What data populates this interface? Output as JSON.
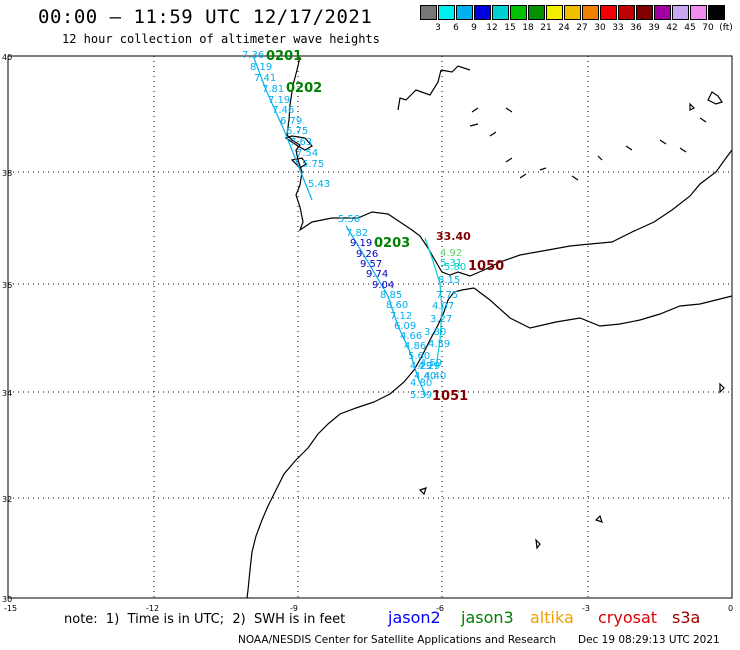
{
  "header": {
    "title": "00:00 – 11:59 UTC 12/17/2021",
    "subtitle": "12 hour collection of altimeter wave heights"
  },
  "legend": {
    "colors": [
      "#777777",
      "#00f0f0",
      "#00b0f0",
      "#0000e0",
      "#00d0d0",
      "#00c000",
      "#009000",
      "#f0f000",
      "#f0c000",
      "#f08000",
      "#f00000",
      "#c00000",
      "#800000",
      "#a000a0",
      "#c8a8f0",
      "#f08cf0",
      "#000000"
    ],
    "ticks": [
      "3",
      "6",
      "9",
      "12",
      "15",
      "18",
      "21",
      "24",
      "27",
      "30",
      "33",
      "36",
      "39",
      "42",
      "45",
      "70",
      "(ft)"
    ]
  },
  "map": {
    "lat_labels": [
      "40",
      "38",
      "36",
      "34",
      "32",
      "30"
    ],
    "lon_labels": [
      "-15",
      "-12",
      "-9",
      "-6",
      "-3",
      "0"
    ],
    "pass_labels": [
      {
        "text": "0201",
        "color": "#008000"
      },
      {
        "text": "0202",
        "color": "#008000"
      },
      {
        "text": "0203",
        "color": "#008000"
      },
      {
        "text": "33.40",
        "color": "#800000"
      },
      {
        "text": "1050",
        "color": "#800000"
      },
      {
        "text": "1051",
        "color": "#800000"
      }
    ],
    "readings": [
      {
        "v": "7.36",
        "c": "#00b0f0"
      },
      {
        "v": "8.19",
        "c": "#00b0f0"
      },
      {
        "v": "7.41",
        "c": "#00b0f0"
      },
      {
        "v": "7.81",
        "c": "#00b0f0"
      },
      {
        "v": "7.19",
        "c": "#00b0f0"
      },
      {
        "v": "7.46",
        "c": "#00b0f0"
      },
      {
        "v": "6.79",
        "c": "#00b0f0"
      },
      {
        "v": "6.75",
        "c": "#00b0f0"
      },
      {
        "v": "7.63",
        "c": "#00b0f0"
      },
      {
        "v": "7.54",
        "c": "#00b0f0"
      },
      {
        "v": "5.75",
        "c": "#00b0f0"
      },
      {
        "v": "5.43",
        "c": "#00b0f0"
      },
      {
        "v": "5.58",
        "c": "#00b0f0"
      },
      {
        "v": "7.82",
        "c": "#00b0f0"
      },
      {
        "v": "9.19",
        "c": "#0000c0"
      },
      {
        "v": "9.26",
        "c": "#0000c0"
      },
      {
        "v": "9.57",
        "c": "#0000c0"
      },
      {
        "v": "9.74",
        "c": "#0000c0"
      },
      {
        "v": "9.04",
        "c": "#0000c0"
      },
      {
        "v": "8.85",
        "c": "#00b0f0"
      },
      {
        "v": "8.60",
        "c": "#00b0f0"
      },
      {
        "v": "7.12",
        "c": "#00b0f0"
      },
      {
        "v": "6.09",
        "c": "#00b0f0"
      },
      {
        "v": "4.66",
        "c": "#00b0f0"
      },
      {
        "v": "4.86",
        "c": "#00b0f0"
      },
      {
        "v": "5.60",
        "c": "#00b0f0"
      },
      {
        "v": "4.29",
        "c": "#00b0f0"
      },
      {
        "v": "4.40",
        "c": "#00b0f0"
      },
      {
        "v": "4.80",
        "c": "#00b0f0"
      },
      {
        "v": "5.39",
        "c": "#00b0f0"
      },
      {
        "v": "4.92",
        "c": "#60d060"
      },
      {
        "v": "5.31",
        "c": "#00d0d0"
      },
      {
        "v": "5.80",
        "c": "#00d0d0"
      },
      {
        "v": "8.15",
        "c": "#00b0f0"
      },
      {
        "v": "7.75",
        "c": "#00b0f0"
      },
      {
        "v": "4.07",
        "c": "#00b0f0"
      },
      {
        "v": "3.27",
        "c": "#00b0f0"
      },
      {
        "v": "3.80",
        "c": "#00b0f0"
      },
      {
        "v": "4.59",
        "c": "#00b0f0"
      },
      {
        "v": "4.59",
        "c": "#00b0f0"
      },
      {
        "v": "4.29",
        "c": "#00b0f0"
      },
      {
        "v": "4.40",
        "c": "#00b0f0"
      }
    ]
  },
  "footer": {
    "note": "note:  1)  Time is in UTC;  2)  SWH is in feet",
    "satellites": [
      {
        "name": "jason2",
        "color": "#0000ff"
      },
      {
        "name": "jason3",
        "color": "#008000"
      },
      {
        "name": "altika",
        "color": "#f0a000"
      },
      {
        "name": "cryosat",
        "color": "#e00000"
      },
      {
        "name": "s3a",
        "color": "#a00000"
      }
    ],
    "credit_left": "NOAA/NESDIS Center for Satellite Applications and Research",
    "credit_right": "Dec 19 08:29:13 UTC 2021"
  }
}
